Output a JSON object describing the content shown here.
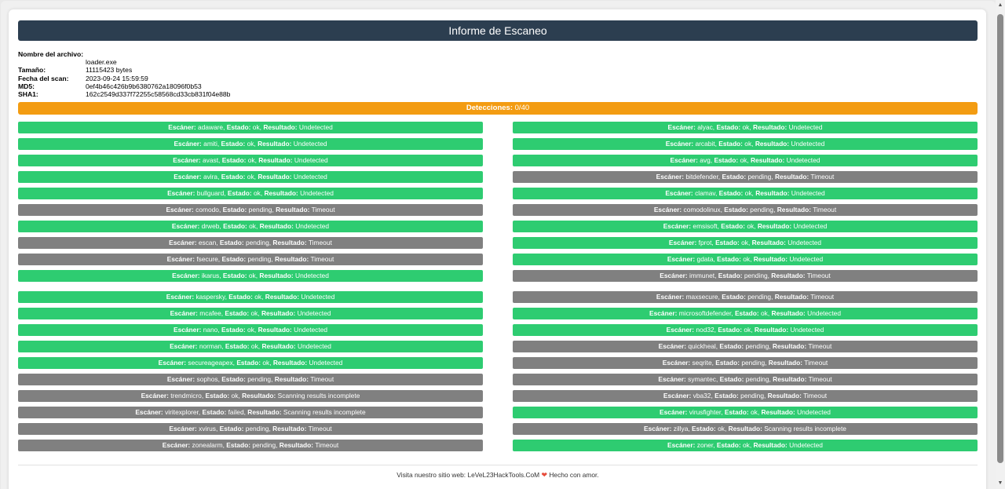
{
  "report": {
    "title": "Informe de Escaneo",
    "info": [
      {
        "label": "Nombre del archivo:",
        "value": "loader.exe"
      },
      {
        "label": "Tamaño:",
        "value": "11115423 bytes"
      },
      {
        "label": "Fecha del scan:",
        "value": "2023-09-24 15:59:59"
      },
      {
        "label": "MD5:",
        "value": "0ef4b46c426b9b6380762a18096f0b53"
      },
      {
        "label": "SHA1:",
        "value": "162c2549d337f72255c58568cd33cb831f04e88b"
      }
    ],
    "detections_label": "Detecciones:",
    "detections_value": "0/40",
    "field_labels": {
      "scanner": "Escáner:",
      "status": "Estado:",
      "result": "Resultado:"
    },
    "left_results": [
      {
        "scanner": "adaware",
        "status": "ok",
        "result": "Undetected"
      },
      {
        "scanner": "amiti",
        "status": "ok",
        "result": "Undetected"
      },
      {
        "scanner": "avast",
        "status": "ok",
        "result": "Undetected"
      },
      {
        "scanner": "avira",
        "status": "ok",
        "result": "Undetected"
      },
      {
        "scanner": "bullguard",
        "status": "ok",
        "result": "Undetected"
      },
      {
        "scanner": "comodo",
        "status": "pending",
        "result": "Timeout"
      },
      {
        "scanner": "drweb",
        "status": "ok",
        "result": "Undetected"
      },
      {
        "scanner": "escan",
        "status": "pending",
        "result": "Timeout"
      },
      {
        "scanner": "fsecure",
        "status": "pending",
        "result": "Timeout"
      },
      {
        "scanner": "ikarus",
        "status": "ok",
        "result": "Undetected"
      },
      {
        "scanner": "kaspersky",
        "status": "ok",
        "result": "Undetected"
      },
      {
        "scanner": "mcafee",
        "status": "ok",
        "result": "Undetected"
      },
      {
        "scanner": "nano",
        "status": "ok",
        "result": "Undetected"
      },
      {
        "scanner": "norman",
        "status": "ok",
        "result": "Undetected"
      },
      {
        "scanner": "secureageapex",
        "status": "ok",
        "result": "Undetected"
      },
      {
        "scanner": "sophos",
        "status": "pending",
        "result": "Timeout"
      },
      {
        "scanner": "trendmicro",
        "status": "ok",
        "result": "Scanning results incomplete"
      },
      {
        "scanner": "viritexplorer",
        "status": "failed",
        "result": "Scanning results incomplete"
      },
      {
        "scanner": "xvirus",
        "status": "pending",
        "result": "Timeout"
      },
      {
        "scanner": "zonealarm",
        "status": "pending",
        "result": "Timeout"
      }
    ],
    "right_results": [
      {
        "scanner": "alyac",
        "status": "ok",
        "result": "Undetected"
      },
      {
        "scanner": "arcabit",
        "status": "ok",
        "result": "Undetected"
      },
      {
        "scanner": "avg",
        "status": "ok",
        "result": "Undetected"
      },
      {
        "scanner": "bitdefender",
        "status": "pending",
        "result": "Timeout"
      },
      {
        "scanner": "clamav",
        "status": "ok",
        "result": "Undetected"
      },
      {
        "scanner": "comodolinux",
        "status": "pending",
        "result": "Timeout"
      },
      {
        "scanner": "emsisoft",
        "status": "ok",
        "result": "Undetected"
      },
      {
        "scanner": "fprot",
        "status": "ok",
        "result": "Undetected"
      },
      {
        "scanner": "gdata",
        "status": "ok",
        "result": "Undetected"
      },
      {
        "scanner": "immunet",
        "status": "pending",
        "result": "Timeout"
      },
      {
        "scanner": "maxsecure",
        "status": "pending",
        "result": "Timeout"
      },
      {
        "scanner": "microsoftdefender",
        "status": "ok",
        "result": "Undetected"
      },
      {
        "scanner": "nod32",
        "status": "ok",
        "result": "Undetected"
      },
      {
        "scanner": "quickheal",
        "status": "pending",
        "result": "Timeout"
      },
      {
        "scanner": "seqrite",
        "status": "pending",
        "result": "Timeout"
      },
      {
        "scanner": "symantec",
        "status": "pending",
        "result": "Timeout"
      },
      {
        "scanner": "vba32",
        "status": "pending",
        "result": "Timeout"
      },
      {
        "scanner": "virusfighter",
        "status": "ok",
        "result": "Undetected"
      },
      {
        "scanner": "zillya",
        "status": "ok",
        "result": "Scanning results incomplete"
      },
      {
        "scanner": "zoner",
        "status": "ok",
        "result": "Undetected"
      }
    ],
    "footer": {
      "text_before": "Visita nuestro sitio web:",
      "link_text": "LeVeL23HackTools.CoM",
      "heart_icon": "heart-icon",
      "text_after": "Hecho con amor."
    }
  },
  "colors": {
    "header_bg": "#2c3e50",
    "detections_bg": "#f39c12",
    "undetected_bg": "#2ecc71",
    "other_bg": "#808080"
  }
}
